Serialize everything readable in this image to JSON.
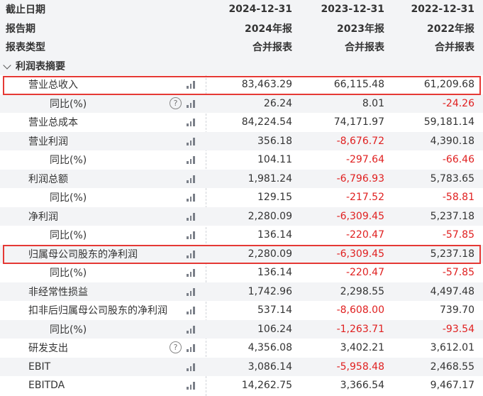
{
  "header": {
    "rows": [
      {
        "label": "截止日期",
        "cols": [
          "2024-12-31",
          "2023-12-31",
          "2022-12-31"
        ]
      },
      {
        "label": "报告期",
        "cols": [
          "2024年报",
          "2023年报",
          "2022年报"
        ]
      },
      {
        "label": "报表类型",
        "cols": [
          "合并报表",
          "合并报表",
          "合并报表"
        ]
      }
    ]
  },
  "section": {
    "title": "利润表摘要"
  },
  "rows": [
    {
      "label": "营业总收入",
      "values": [
        "83,463.29",
        "66,115.48",
        "61,209.68"
      ]
    },
    {
      "label": "同比(%)",
      "values": [
        "26.24",
        "8.01",
        "-24.26"
      ]
    },
    {
      "label": "营业总成本",
      "values": [
        "84,224.54",
        "74,171.97",
        "59,181.14"
      ]
    },
    {
      "label": "营业利润",
      "values": [
        "356.18",
        "-8,676.72",
        "4,390.18"
      ]
    },
    {
      "label": "同比(%)",
      "values": [
        "104.11",
        "-297.64",
        "-66.46"
      ]
    },
    {
      "label": "利润总额",
      "values": [
        "1,981.24",
        "-6,796.93",
        "5,783.65"
      ]
    },
    {
      "label": "同比(%)",
      "values": [
        "129.15",
        "-217.52",
        "-58.81"
      ]
    },
    {
      "label": "净利润",
      "values": [
        "2,280.09",
        "-6,309.45",
        "5,237.18"
      ]
    },
    {
      "label": "同比(%)",
      "values": [
        "136.14",
        "-220.47",
        "-57.85"
      ]
    },
    {
      "label": "归属母公司股东的净利润",
      "values": [
        "2,280.09",
        "-6,309.45",
        "5,237.18"
      ]
    },
    {
      "label": "同比(%)",
      "values": [
        "136.14",
        "-220.47",
        "-57.85"
      ]
    },
    {
      "label": "非经常性损益",
      "values": [
        "1,742.96",
        "2,298.55",
        "4,497.48"
      ]
    },
    {
      "label": "扣非后归属母公司股东的净利润",
      "values": [
        "537.14",
        "-8,608.00",
        "739.70"
      ]
    },
    {
      "label": "同比(%)",
      "values": [
        "106.24",
        "-1,263.71",
        "-93.54"
      ]
    },
    {
      "label": "研发支出",
      "values": [
        "4,356.08",
        "3,402.21",
        "3,612.01"
      ]
    },
    {
      "label": "EBIT",
      "values": [
        "3,086.14",
        "-5,958.48",
        "2,468.55"
      ]
    },
    {
      "label": "EBITDA",
      "values": [
        "14,262.75",
        "3,366.54",
        "9,467.17"
      ]
    }
  ],
  "colors": {
    "negative": "#e02020",
    "highlight": "#e53935",
    "shade": "#f3f4f6"
  }
}
